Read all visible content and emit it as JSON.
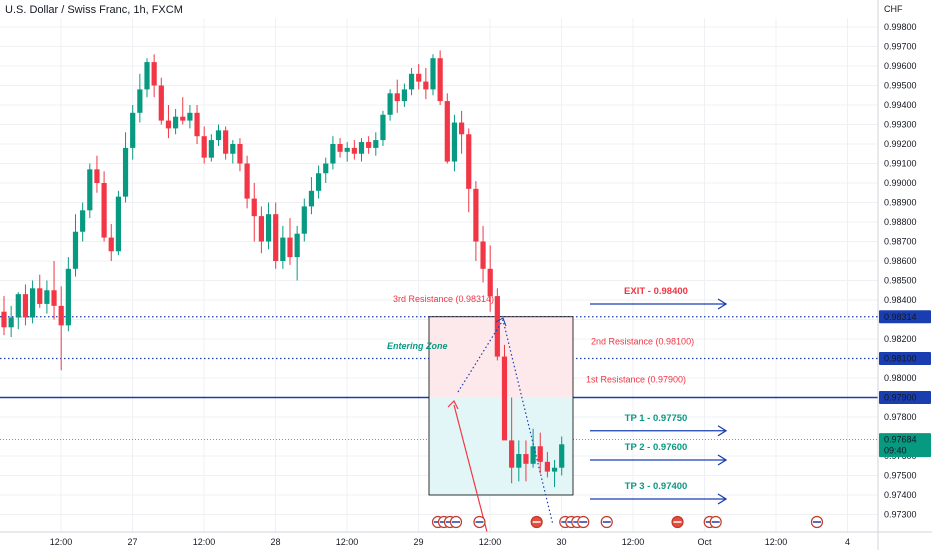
{
  "header": {
    "symbol_title": "U.S. Dollar / Swiss Franc, 1h, FXCM"
  },
  "colors": {
    "up": "#089981",
    "down": "#f23645",
    "blue": "#1a3eb0",
    "grid": "#eef0f4",
    "current_price_bg": "#089981",
    "entry_fill": "#fde9ec",
    "tp_fill": "#e3f6f7"
  },
  "chart_data": {
    "type": "candlestick",
    "title": "U.S. Dollar / Swiss Franc, 1h, FXCM",
    "currency_label": "CHF",
    "ylim": [
      0.9722,
      0.9989
    ],
    "y_ticks": [
      "0.99800",
      "0.99700",
      "0.99600",
      "0.99500",
      "0.99400",
      "0.99300",
      "0.99200",
      "0.99100",
      "0.99000",
      "0.98900",
      "0.98800",
      "0.98700",
      "0.98600",
      "0.98500",
      "0.98400",
      "0.98300",
      "0.98200",
      "0.98000",
      "0.97900",
      "0.97800",
      "0.97600",
      "0.97500",
      "0.97400",
      "0.97300"
    ],
    "x_ticks": [
      "12:00",
      "27",
      "12:00",
      "28",
      "12:00",
      "29",
      "12:00",
      "30",
      "12:00",
      "Oct",
      "12:00",
      "4"
    ],
    "x_tick_positions": [
      0,
      10,
      20,
      30,
      40,
      50,
      60,
      70,
      80,
      90,
      100,
      110
    ],
    "candles": [
      {
        "o": 0.9834,
        "h": 0.9842,
        "l": 0.9822,
        "c": 0.9826
      },
      {
        "o": 0.9826,
        "h": 0.9837,
        "l": 0.9821,
        "c": 0.9831
      },
      {
        "o": 0.9831,
        "h": 0.9844,
        "l": 0.9825,
        "c": 0.9843
      },
      {
        "o": 0.9843,
        "h": 0.9848,
        "l": 0.9827,
        "c": 0.9831
      },
      {
        "o": 0.9831,
        "h": 0.985,
        "l": 0.9828,
        "c": 0.9846
      },
      {
        "o": 0.9846,
        "h": 0.9853,
        "l": 0.9836,
        "c": 0.9838
      },
      {
        "o": 0.9838,
        "h": 0.985,
        "l": 0.9833,
        "c": 0.9845
      },
      {
        "o": 0.9845,
        "h": 0.986,
        "l": 0.983,
        "c": 0.9837
      },
      {
        "o": 0.9837,
        "h": 0.9847,
        "l": 0.9804,
        "c": 0.9827
      },
      {
        "o": 0.9827,
        "h": 0.9862,
        "l": 0.9824,
        "c": 0.9856
      },
      {
        "o": 0.9856,
        "h": 0.9884,
        "l": 0.9852,
        "c": 0.9875
      },
      {
        "o": 0.9875,
        "h": 0.989,
        "l": 0.987,
        "c": 0.9886
      },
      {
        "o": 0.9886,
        "h": 0.991,
        "l": 0.9882,
        "c": 0.9907
      },
      {
        "o": 0.9907,
        "h": 0.9914,
        "l": 0.9895,
        "c": 0.99
      },
      {
        "o": 0.99,
        "h": 0.9906,
        "l": 0.987,
        "c": 0.9872
      },
      {
        "o": 0.9872,
        "h": 0.9879,
        "l": 0.986,
        "c": 0.9865
      },
      {
        "o": 0.9865,
        "h": 0.9896,
        "l": 0.9863,
        "c": 0.9893
      },
      {
        "o": 0.9893,
        "h": 0.9926,
        "l": 0.989,
        "c": 0.9918
      },
      {
        "o": 0.9918,
        "h": 0.994,
        "l": 0.9912,
        "c": 0.9936
      },
      {
        "o": 0.9936,
        "h": 0.9956,
        "l": 0.9931,
        "c": 0.9948
      },
      {
        "o": 0.9948,
        "h": 0.9964,
        "l": 0.9944,
        "c": 0.9962
      },
      {
        "o": 0.9962,
        "h": 0.9966,
        "l": 0.9944,
        "c": 0.995
      },
      {
        "o": 0.995,
        "h": 0.9954,
        "l": 0.993,
        "c": 0.9932
      },
      {
        "o": 0.9932,
        "h": 0.994,
        "l": 0.9923,
        "c": 0.9928
      },
      {
        "o": 0.9928,
        "h": 0.9938,
        "l": 0.9925,
        "c": 0.9934
      },
      {
        "o": 0.9934,
        "h": 0.9944,
        "l": 0.993,
        "c": 0.9932
      },
      {
        "o": 0.9932,
        "h": 0.994,
        "l": 0.9928,
        "c": 0.9936
      },
      {
        "o": 0.9936,
        "h": 0.994,
        "l": 0.992,
        "c": 0.9924
      },
      {
        "o": 0.9924,
        "h": 0.9929,
        "l": 0.991,
        "c": 0.9913
      },
      {
        "o": 0.9913,
        "h": 0.9925,
        "l": 0.9911,
        "c": 0.9922
      },
      {
        "o": 0.9922,
        "h": 0.993,
        "l": 0.9919,
        "c": 0.9927
      },
      {
        "o": 0.9927,
        "h": 0.9929,
        "l": 0.9912,
        "c": 0.9915
      },
      {
        "o": 0.9915,
        "h": 0.9922,
        "l": 0.991,
        "c": 0.992
      },
      {
        "o": 0.992,
        "h": 0.9923,
        "l": 0.9906,
        "c": 0.991
      },
      {
        "o": 0.991,
        "h": 0.9914,
        "l": 0.9887,
        "c": 0.9892
      },
      {
        "o": 0.9892,
        "h": 0.99,
        "l": 0.987,
        "c": 0.9883
      },
      {
        "o": 0.9883,
        "h": 0.9888,
        "l": 0.9864,
        "c": 0.987
      },
      {
        "o": 0.987,
        "h": 0.989,
        "l": 0.9866,
        "c": 0.9884
      },
      {
        "o": 0.9884,
        "h": 0.989,
        "l": 0.9856,
        "c": 0.986
      },
      {
        "o": 0.986,
        "h": 0.9878,
        "l": 0.9856,
        "c": 0.9872
      },
      {
        "o": 0.9872,
        "h": 0.9882,
        "l": 0.9858,
        "c": 0.9862
      },
      {
        "o": 0.9862,
        "h": 0.9878,
        "l": 0.985,
        "c": 0.9874
      },
      {
        "o": 0.9874,
        "h": 0.9892,
        "l": 0.987,
        "c": 0.9888
      },
      {
        "o": 0.9888,
        "h": 0.9903,
        "l": 0.9884,
        "c": 0.9896
      },
      {
        "o": 0.9896,
        "h": 0.9909,
        "l": 0.9892,
        "c": 0.9905
      },
      {
        "o": 0.9905,
        "h": 0.9913,
        "l": 0.99,
        "c": 0.991
      },
      {
        "o": 0.991,
        "h": 0.9924,
        "l": 0.9907,
        "c": 0.992
      },
      {
        "o": 0.992,
        "h": 0.9923,
        "l": 0.9913,
        "c": 0.9916
      },
      {
        "o": 0.9916,
        "h": 0.9921,
        "l": 0.9911,
        "c": 0.9918
      },
      {
        "o": 0.9918,
        "h": 0.9922,
        "l": 0.9912,
        "c": 0.9915
      },
      {
        "o": 0.9915,
        "h": 0.9923,
        "l": 0.9911,
        "c": 0.9921
      },
      {
        "o": 0.9921,
        "h": 0.9924,
        "l": 0.9915,
        "c": 0.9918
      },
      {
        "o": 0.9918,
        "h": 0.9926,
        "l": 0.9914,
        "c": 0.9922
      },
      {
        "o": 0.9922,
        "h": 0.9937,
        "l": 0.9919,
        "c": 0.9935
      },
      {
        "o": 0.9935,
        "h": 0.9948,
        "l": 0.9932,
        "c": 0.9946
      },
      {
        "o": 0.9946,
        "h": 0.9953,
        "l": 0.9936,
        "c": 0.9942
      },
      {
        "o": 0.9942,
        "h": 0.9951,
        "l": 0.9939,
        "c": 0.9948
      },
      {
        "o": 0.9948,
        "h": 0.9959,
        "l": 0.9945,
        "c": 0.9956
      },
      {
        "o": 0.9956,
        "h": 0.9961,
        "l": 0.9948,
        "c": 0.9952
      },
      {
        "o": 0.9952,
        "h": 0.9959,
        "l": 0.9943,
        "c": 0.9948
      },
      {
        "o": 0.9948,
        "h": 0.9966,
        "l": 0.9945,
        "c": 0.9964
      },
      {
        "o": 0.9964,
        "h": 0.9968,
        "l": 0.994,
        "c": 0.9942
      },
      {
        "o": 0.9942,
        "h": 0.9946,
        "l": 0.991,
        "c": 0.9911
      },
      {
        "o": 0.9911,
        "h": 0.9935,
        "l": 0.9906,
        "c": 0.9931
      },
      {
        "o": 0.9931,
        "h": 0.9937,
        "l": 0.9915,
        "c": 0.9925
      },
      {
        "o": 0.9925,
        "h": 0.9928,
        "l": 0.9885,
        "c": 0.9897
      },
      {
        "o": 0.9897,
        "h": 0.9901,
        "l": 0.986,
        "c": 0.987
      },
      {
        "o": 0.987,
        "h": 0.9878,
        "l": 0.9849,
        "c": 0.9856
      },
      {
        "o": 0.9856,
        "h": 0.9868,
        "l": 0.9834,
        "c": 0.9842
      },
      {
        "o": 0.9842,
        "h": 0.9846,
        "l": 0.9809,
        "c": 0.9811
      },
      {
        "o": 0.9811,
        "h": 0.9817,
        "l": 0.977,
        "c": 0.9768
      },
      {
        "o": 0.9768,
        "h": 0.979,
        "l": 0.9746,
        "c": 0.9754
      },
      {
        "o": 0.9754,
        "h": 0.9768,
        "l": 0.9747,
        "c": 0.9761
      },
      {
        "o": 0.9761,
        "h": 0.9768,
        "l": 0.9747,
        "c": 0.9756
      },
      {
        "o": 0.9756,
        "h": 0.9774,
        "l": 0.9754,
        "c": 0.9765
      },
      {
        "o": 0.9765,
        "h": 0.9772,
        "l": 0.9751,
        "c": 0.9757
      },
      {
        "o": 0.9757,
        "h": 0.9762,
        "l": 0.9749,
        "c": 0.9752
      },
      {
        "o": 0.9752,
        "h": 0.9758,
        "l": 0.9744,
        "c": 0.9754
      },
      {
        "o": 0.9754,
        "h": 0.977,
        "l": 0.975,
        "c": 0.9766
      }
    ],
    "current_price": {
      "value": 0.97684,
      "label": "0.97684",
      "countdown": "09:40"
    },
    "levels": [
      {
        "name": "3rd Resistance",
        "value": 0.98314,
        "label": "3rd Resistance (0.98314)",
        "axis_label": "0.98314",
        "style": "dotted"
      },
      {
        "name": "2nd Resistance",
        "value": 0.981,
        "label": "2nd Resistance (0.98100)",
        "axis_label": "0.98100",
        "style": "dotted"
      },
      {
        "name": "1st Resistance",
        "value": 0.979,
        "label": "1st Resistance (0.97900)",
        "axis_label": "0.97900",
        "style": "solid"
      }
    ],
    "entry_zone": {
      "label": "Entering Zone",
      "top": 0.98314,
      "mid": 0.979,
      "bottom": 0.974
    },
    "targets": [
      {
        "label": "EXIT - 0.98400",
        "value": 0.984,
        "color": "#f23645"
      },
      {
        "label": "TP 1 - 0.97750",
        "value": 0.9775,
        "color": "#089981"
      },
      {
        "label": "TP 2 - 0.97600",
        "value": 0.976,
        "color": "#089981"
      },
      {
        "label": "TP 3 - 0.97400",
        "value": 0.974,
        "color": "#089981"
      }
    ],
    "events": [
      {
        "icons": [
          "us-flag-icon",
          "us-flag-icon",
          "us-flag-icon",
          "us-flag-icon"
        ],
        "at": 60.7
      },
      {
        "icons": [
          "us-flag-icon"
        ],
        "at": 66.5
      },
      {
        "icons": [
          "ch-flag-icon"
        ],
        "at": 74.5
      },
      {
        "icons": [
          "us-flag-icon",
          "us-flag-icon",
          "us-flag-icon",
          "us-flag-icon"
        ],
        "at": 78.5
      },
      {
        "icons": [
          "us-flag-icon"
        ],
        "at": 84.3
      },
      {
        "icons": [
          "ch-flag-icon"
        ],
        "at": 94.2
      },
      {
        "icons": [
          "us-flag-icon",
          "us-flag-icon"
        ],
        "at": 98.7
      },
      {
        "icons": [
          "us-flag-icon"
        ],
        "at": 113.7
      }
    ]
  }
}
